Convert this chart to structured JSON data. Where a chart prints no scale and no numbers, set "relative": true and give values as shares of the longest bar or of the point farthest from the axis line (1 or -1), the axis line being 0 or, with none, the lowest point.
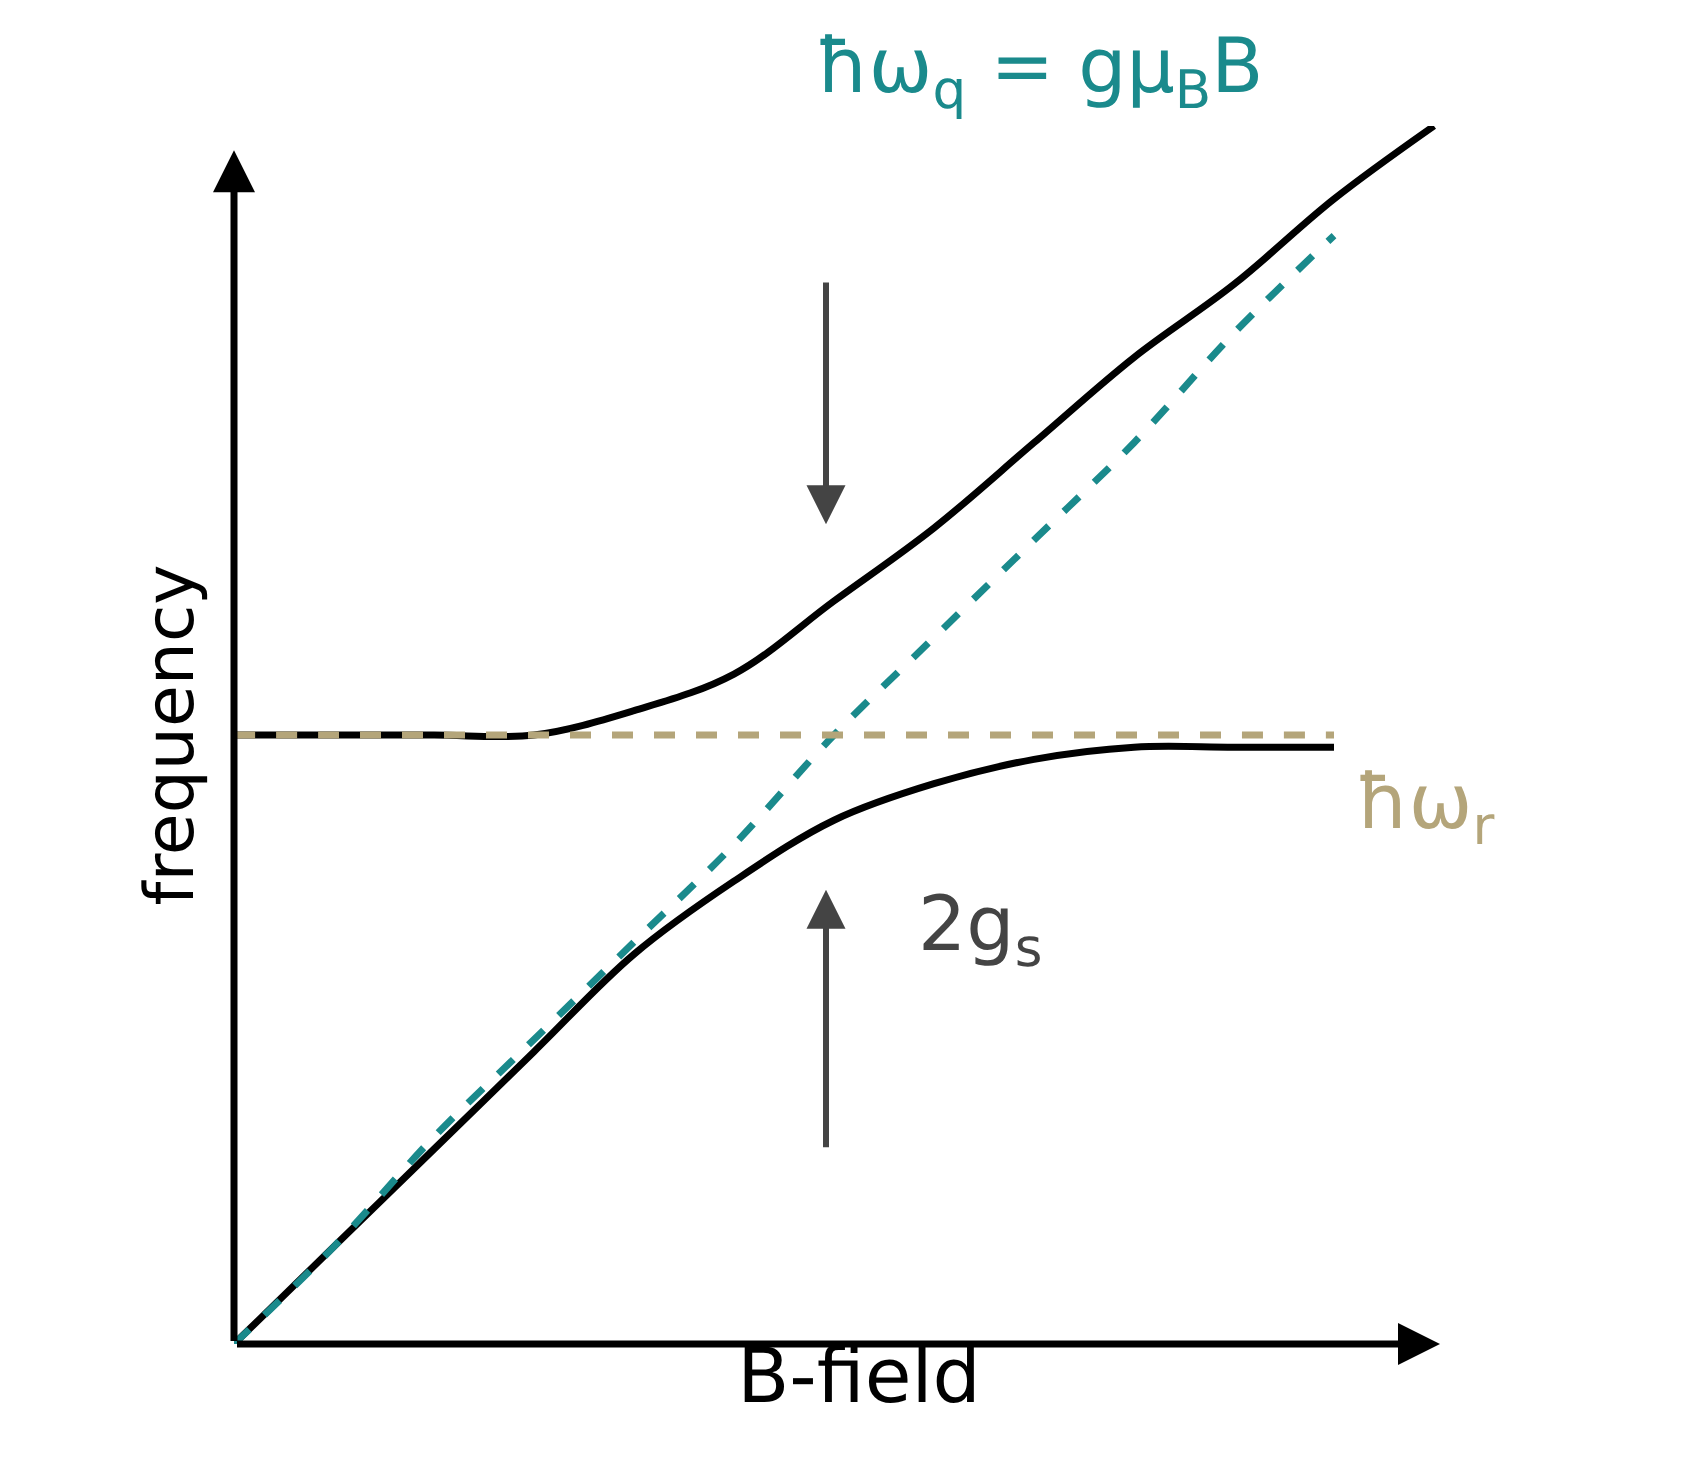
{
  "chart_data": {
    "type": "line",
    "relative": true,
    "xlabel": "B-field",
    "ylabel": "frequency",
    "categories": [
      null,
      null,
      null,
      null,
      null,
      null,
      null,
      null,
      null,
      null,
      null,
      null,
      null
    ],
    "series": [
      {
        "color": "#000000",
        "values": [
          0.5,
          0.5,
          0.5,
          0.5,
          0.52,
          0.55,
          0.61,
          0.67,
          0.74,
          0.81,
          0.87,
          0.94,
          1
        ]
      },
      {
        "color": "#000000",
        "values": [
          0,
          0.08,
          0.16,
          0.24,
          0.32,
          0.38,
          0.43,
          0.46,
          0.48,
          0.49,
          0.49,
          0.49,
          null
        ]
      },
      {
        "name": "ħω$_{q}$ = gμ$_{B}$B",
        "color": "#1a8a8c",
        "line_style": "dashed",
        "values": [
          0,
          0.08,
          0.17,
          0.25,
          0.33,
          0.41,
          0.5,
          0.58,
          0.66,
          0.74,
          0.83,
          0.91,
          null
        ]
      },
      {
        "name": "ħω$_{r}$",
        "color": "#b4a57a",
        "line_style": "dashed",
        "values": [
          0.5,
          0.5,
          0.5,
          0.5,
          0.5,
          0.5,
          0.5,
          0.5,
          0.5,
          0.5,
          0.5,
          0.5,
          null
        ]
      }
    ],
    "annotations": [
      "2g$_{s}$"
    ],
    "legend": false,
    "marker": "none"
  }
}
